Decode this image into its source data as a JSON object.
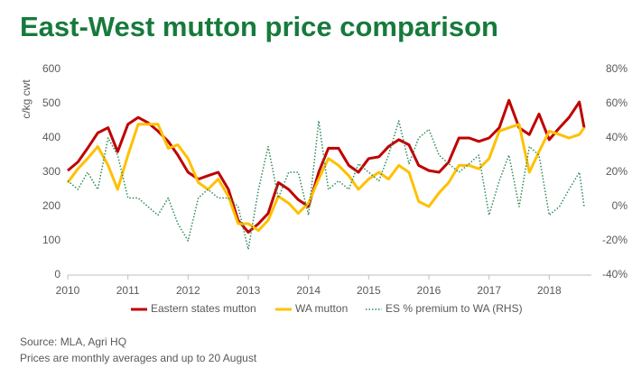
{
  "chart_data": {
    "type": "line",
    "title": "East-West mutton price comparison",
    "y_label": "c/kg cwt",
    "x": [
      2010,
      2010.17,
      2010.33,
      2010.5,
      2010.67,
      2010.83,
      2011,
      2011.17,
      2011.33,
      2011.5,
      2011.67,
      2011.83,
      2012,
      2012.17,
      2012.33,
      2012.5,
      2012.67,
      2012.83,
      2013,
      2013.17,
      2013.33,
      2013.5,
      2013.67,
      2013.83,
      2014,
      2014.17,
      2014.33,
      2014.5,
      2014.67,
      2014.83,
      2015,
      2015.17,
      2015.33,
      2015.5,
      2015.67,
      2015.83,
      2016,
      2016.17,
      2016.33,
      2016.5,
      2016.67,
      2016.83,
      2017,
      2017.17,
      2017.33,
      2017.5,
      2017.67,
      2017.83,
      2018,
      2018.17,
      2018.33,
      2018.5,
      2018.58
    ],
    "series": [
      {
        "name": "Eastern states mutton",
        "color": "#c00000",
        "values": [
          305,
          330,
          370,
          415,
          430,
          360,
          440,
          460,
          445,
          420,
          390,
          350,
          300,
          280,
          290,
          300,
          250,
          160,
          125,
          150,
          180,
          270,
          250,
          220,
          200,
          300,
          370,
          370,
          320,
          300,
          340,
          345,
          375,
          395,
          380,
          320,
          305,
          300,
          330,
          400,
          400,
          390,
          400,
          430,
          510,
          430,
          410,
          470,
          395,
          430,
          460,
          505,
          430
        ]
      },
      {
        "name": "WA mutton",
        "color": "#ffc000",
        "values": [
          270,
          310,
          340,
          375,
          320,
          250,
          350,
          440,
          440,
          440,
          370,
          380,
          340,
          270,
          250,
          280,
          230,
          150,
          150,
          130,
          160,
          230,
          210,
          180,
          210,
          280,
          340,
          320,
          290,
          250,
          280,
          300,
          280,
          320,
          300,
          215,
          200,
          240,
          270,
          320,
          320,
          310,
          340,
          420,
          430,
          440,
          300,
          360,
          420,
          410,
          400,
          410,
          430
        ]
      },
      {
        "name": "ES % premium to WA (RHS)",
        "color": "#2e8b57",
        "axis": "y2",
        "style": "dotted",
        "values": [
          15,
          10,
          20,
          10,
          40,
          30,
          5,
          5,
          0,
          -5,
          5,
          -10,
          -20,
          5,
          10,
          5,
          5,
          0,
          -25,
          10,
          35,
          5,
          20,
          20,
          -5,
          50,
          10,
          15,
          10,
          25,
          20,
          15,
          30,
          50,
          25,
          40,
          45,
          30,
          25,
          20,
          25,
          30,
          -5,
          15,
          30,
          0,
          35,
          30,
          -5,
          0,
          10,
          20,
          0
        ]
      }
    ],
    "xlim": [
      2010,
      2018.7
    ],
    "xticks": [
      2010,
      2011,
      2012,
      2013,
      2014,
      2015,
      2016,
      2017,
      2018
    ],
    "ylim": [
      0,
      600
    ],
    "yticks": [
      0,
      100,
      200,
      300,
      400,
      500,
      600
    ],
    "y2lim": [
      -40,
      80
    ],
    "y2ticks": [
      {
        "value": -40,
        "label": "-40%"
      },
      {
        "value": -20,
        "label": "-20%"
      },
      {
        "value": 0,
        "label": "0%"
      },
      {
        "value": 20,
        "label": "20%"
      },
      {
        "value": 40,
        "label": "40%"
      },
      {
        "value": 60,
        "label": "60%"
      },
      {
        "value": 80,
        "label": "80%"
      }
    ],
    "legend": "bottom",
    "notes": [
      "Source: MLA, Agri HQ",
      "Prices are monthly averages and up to 20 August"
    ]
  }
}
